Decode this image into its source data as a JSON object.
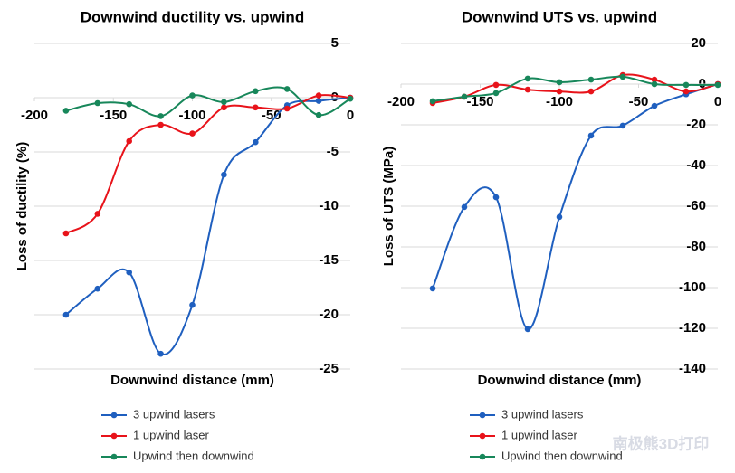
{
  "chart_data": [
    {
      "type": "line",
      "title": "Downwind ductility vs. upwind",
      "x_label": "Downwind distance (mm)",
      "y_label": "Loss of ductility  (%)",
      "x": [
        -180,
        -160,
        -140,
        -120,
        -100,
        -80,
        -60,
        -40,
        -20,
        0
      ],
      "xlim": [
        -200,
        0
      ],
      "xticks": [
        -200,
        -150,
        -100,
        -50,
        0
      ],
      "ylim": [
        -25,
        5
      ],
      "yticks": [
        -25,
        -20,
        -15,
        -10,
        -5,
        0,
        5
      ],
      "grid": true,
      "series": [
        {
          "name": "3 upwind lasers",
          "color": "#1f5fbf",
          "values": [
            -20,
            -17.6,
            -16.1,
            -23.6,
            -19.1,
            -7.1,
            -4.1,
            -0.7,
            -0.3,
            0
          ]
        },
        {
          "name": "1 upwind laser",
          "color": "#e8131a",
          "values": [
            -12.5,
            -10.7,
            -4,
            -2.5,
            -3.3,
            -0.9,
            -0.9,
            -1,
            0.2,
            0
          ]
        },
        {
          "name": "Upwind then downwind",
          "color": "#17875a",
          "values": [
            -1.2,
            -0.5,
            -0.6,
            -1.7,
            0.2,
            -0.4,
            0.6,
            0.8,
            -1.6,
            -0.1
          ]
        }
      ]
    },
    {
      "type": "line",
      "title": "Downwind UTS vs. upwind",
      "x_label": "Downwind distance (mm)",
      "y_label": "Loss of UTS (MPa)",
      "x": [
        -180,
        -160,
        -140,
        -120,
        -100,
        -80,
        -60,
        -40,
        -20,
        0
      ],
      "xlim": [
        -200,
        0
      ],
      "xticks": [
        -200,
        -150,
        -100,
        -50,
        0
      ],
      "ylim": [
        -140,
        20
      ],
      "yticks": [
        -140,
        -120,
        -100,
        -80,
        -60,
        -40,
        -20,
        0,
        20
      ],
      "grid": true,
      "series": [
        {
          "name": "3 upwind lasers",
          "color": "#1f5fbf",
          "values": [
            -100.4,
            -60.4,
            -55.6,
            -120.4,
            -65.3,
            -25.3,
            -20.4,
            -10.7,
            -5,
            0
          ]
        },
        {
          "name": "1 upwind laser",
          "color": "#e8131a",
          "values": [
            -9.3,
            -6.2,
            -0.4,
            -2.7,
            -3.6,
            -3.6,
            4.4,
            2.2,
            -3.6,
            0
          ]
        },
        {
          "name": "Upwind then downwind",
          "color": "#17875a",
          "values": [
            -8.4,
            -6.2,
            -4.4,
            2.7,
            0.9,
            2.2,
            3.6,
            0,
            -0.4,
            -0.4
          ]
        }
      ]
    }
  ],
  "watermark": "南极熊3D打印"
}
